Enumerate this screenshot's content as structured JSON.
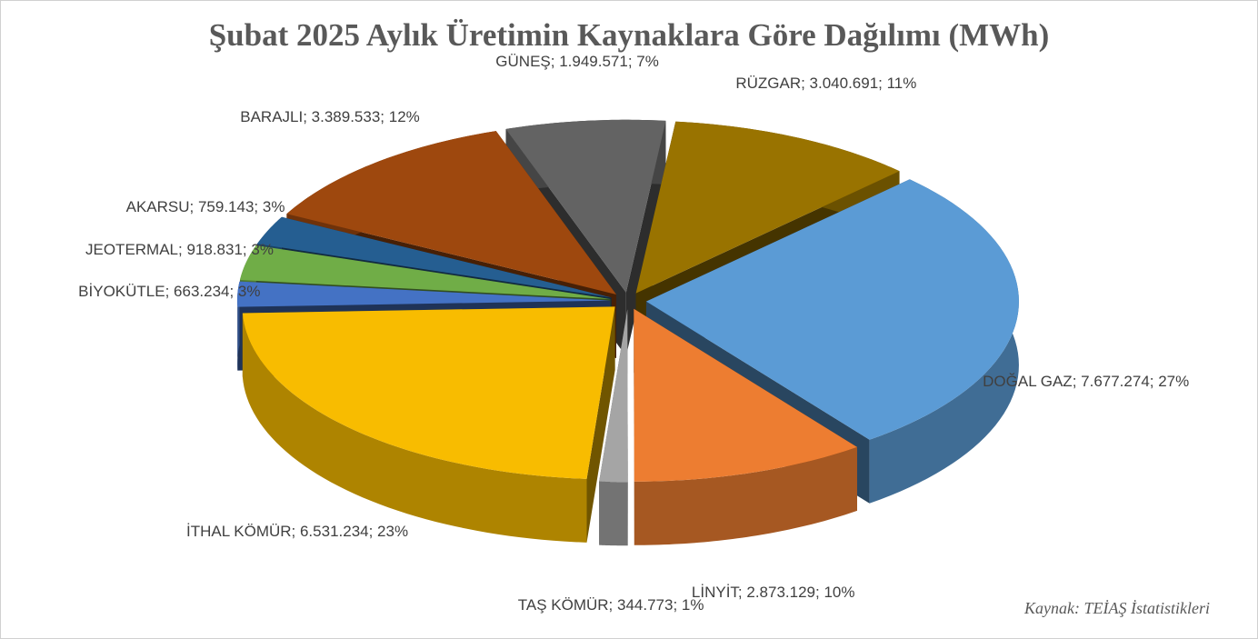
{
  "chart_data": {
    "type": "pie3d",
    "title": "Şubat 2025 Aylık Üretimin Kaynaklara Göre Dağılımı (MWh)",
    "values": [
      7677274,
      2873129,
      344773,
      6531234,
      663234,
      918831,
      759143,
      3389533,
      1949571,
      3040691
    ],
    "value_labels": [
      "DOĞAL GAZ; 7.677.274; 27%",
      "LİNYİT; 2.873.129; 10%",
      "TAŞ KÖMÜR; 344.773; 1%",
      "İTHAL KÖMÜR; 6.531.234; 23%",
      "BİYOKÜTLE; 663.234; 3%",
      "JEOTERMAL; 918.831; 3%",
      "AKARSU; 759.143; 3%",
      "BARAJLI; 3.389.533; 12%",
      "GÜNEŞ; 1.949.571; 7%",
      "RÜZGAR; 3.040.691; 11%"
    ],
    "colors": [
      "#5b9bd5",
      "#ed7d31",
      "#a5a5a5",
      "#f8bc00",
      "#4472c4",
      "#70ad47",
      "#255e91",
      "#9e480e",
      "#636363",
      "#997300"
    ],
    "source": "Kaynak: TEİAŞ İstatistikleri"
  }
}
